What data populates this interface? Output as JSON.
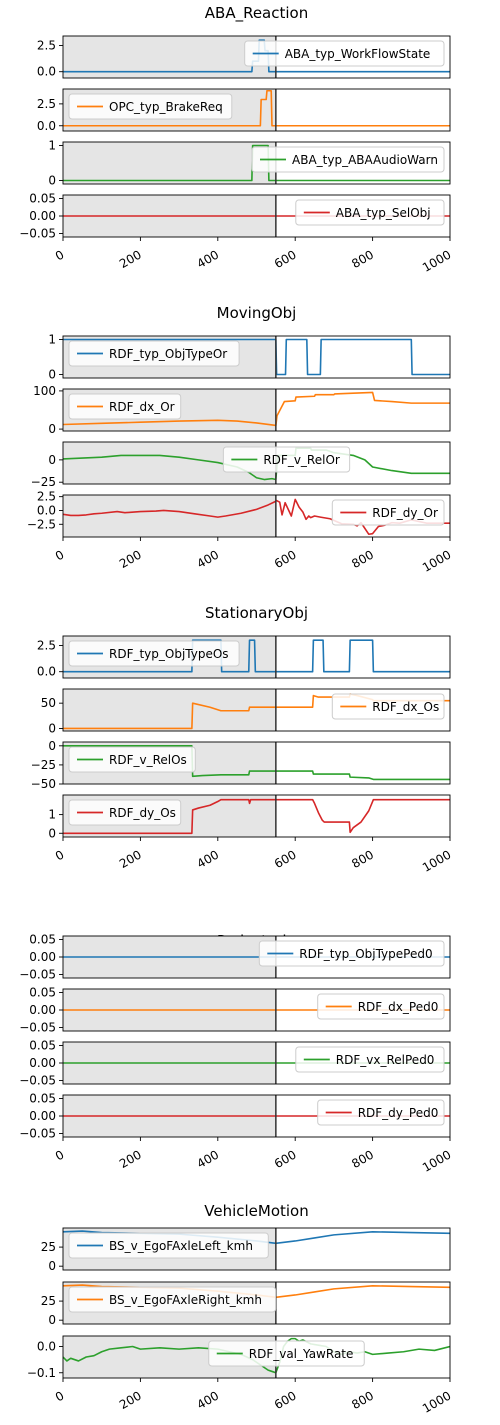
{
  "colors": {
    "c0": "#1f77b4",
    "c1": "#ff7f0e",
    "c2": "#2ca02c",
    "c3": "#d62728",
    "shade": "#e5e5e5",
    "marker": "#333333"
  },
  "chart_data": [
    {
      "type": "line",
      "title": "ABA_Reaction",
      "xlim": [
        0,
        1000
      ],
      "xticks": [
        "0",
        "200",
        "400",
        "600",
        "800",
        "1000"
      ],
      "shade_x": [
        0,
        550
      ],
      "vline_x": 550,
      "panels": [
        {
          "name": "ABA_typ_WorkFlowState",
          "color": "c0",
          "ylim": [
            -0.6,
            3.4
          ],
          "yticks": [
            0.0,
            2.5
          ],
          "yticklabels": [
            "0.0",
            "2.5"
          ],
          "legend": "right",
          "x": [
            0,
            488,
            490,
            505,
            507,
            520,
            522,
            530,
            532,
            1000
          ],
          "y": [
            0,
            0,
            1,
            1,
            3,
            3,
            2,
            2,
            0,
            0
          ]
        },
        {
          "name": "OPC_typ_BrakeReq",
          "color": "c1",
          "ylim": [
            -0.6,
            4.2
          ],
          "yticks": [
            0.0,
            2.5
          ],
          "yticklabels": [
            "0.0",
            "2.5"
          ],
          "legend": "left",
          "x": [
            0,
            510,
            512,
            525,
            527,
            538,
            540,
            1000
          ],
          "y": [
            0,
            0,
            3,
            3,
            4,
            4,
            0,
            0
          ]
        },
        {
          "name": "ABA_typ_ABAAudioWarn",
          "color": "c2",
          "ylim": [
            -0.1,
            1.1
          ],
          "yticks": [
            0,
            1
          ],
          "yticklabels": [
            "0",
            "1"
          ],
          "legend": "right",
          "x": [
            0,
            488,
            490,
            530,
            532,
            1000
          ],
          "y": [
            0,
            0,
            1,
            1,
            0,
            0
          ]
        },
        {
          "name": "ABA_typ_SelObj",
          "color": "c3",
          "ylim": [
            -0.06,
            0.06
          ],
          "yticks": [
            -0.05,
            0.0,
            0.05
          ],
          "yticklabels": [
            "−0.05",
            "0.00",
            "0.05"
          ],
          "legend": "right",
          "x": [
            0,
            1000
          ],
          "y": [
            0,
            0
          ]
        }
      ]
    },
    {
      "type": "line",
      "title": "MovingObj",
      "xlim": [
        0,
        1000
      ],
      "xticks": [
        "0",
        "200",
        "400",
        "600",
        "800",
        "1000"
      ],
      "shade_x": [
        0,
        550
      ],
      "vline_x": 550,
      "panels": [
        {
          "name": "RDF_typ_ObjTypeOr",
          "color": "c0",
          "ylim": [
            -0.1,
            1.1
          ],
          "yticks": [
            0,
            1
          ],
          "yticklabels": [
            "0",
            "1"
          ],
          "legend": "left",
          "x": [
            0,
            550,
            552,
            575,
            577,
            630,
            632,
            665,
            667,
            900,
            902,
            1000
          ],
          "y": [
            1,
            1,
            0,
            0,
            1,
            1,
            0,
            0,
            1,
            1,
            0,
            0
          ]
        },
        {
          "name": "RDF_dx_Or",
          "color": "c1",
          "ylim": [
            -5,
            105
          ],
          "yticks": [
            0,
            100
          ],
          "yticklabels": [
            "0",
            "100"
          ],
          "legend": "left",
          "x": [
            0,
            100,
            200,
            300,
            400,
            450,
            500,
            548,
            550,
            553,
            570,
            572,
            600,
            602,
            650,
            652,
            700,
            702,
            750,
            800,
            805,
            850,
            900,
            1000
          ],
          "y": [
            12,
            15,
            18,
            21,
            23,
            21,
            16,
            10,
            9,
            35,
            68,
            72,
            74,
            84,
            86,
            90,
            90,
            92,
            94,
            96,
            75,
            72,
            68,
            68
          ]
        },
        {
          "name": "RDF_v_RelOr",
          "color": "c2",
          "ylim": [
            -27,
            20
          ],
          "yticks": [
            -25,
            0
          ],
          "yticklabels": [
            "−25",
            "0"
          ],
          "legend": "center",
          "x": [
            0,
            100,
            150,
            200,
            250,
            300,
            350,
            400,
            450,
            480,
            500,
            520,
            540,
            550,
            555,
            600,
            602,
            640,
            642,
            680,
            700,
            750,
            780,
            800,
            850,
            900,
            1000
          ],
          "y": [
            1,
            3,
            5,
            5,
            5,
            3,
            0,
            -3,
            -8,
            -14,
            -20,
            -22,
            -21,
            -22,
            5,
            5,
            13,
            13,
            11,
            11,
            8,
            5,
            0,
            -8,
            -12,
            -15,
            -15
          ]
        },
        {
          "name": "RDF_dy_Or",
          "color": "c3",
          "ylim": [
            -4.8,
            2.8
          ],
          "yticks": [
            -2.5,
            0.0,
            2.5
          ],
          "yticklabels": [
            "−2.5",
            "0.0",
            "2.5"
          ],
          "legend": "right",
          "x": [
            0,
            20,
            40,
            60,
            80,
            100,
            140,
            160,
            200,
            240,
            260,
            300,
            340,
            380,
            400,
            420,
            460,
            500,
            530,
            548,
            552,
            560,
            566,
            574,
            590,
            600,
            610,
            620,
            628,
            635,
            640,
            650,
            665,
            690,
            720,
            750,
            760,
            770,
            790,
            800,
            815,
            830,
            850,
            870,
            900,
            940,
            1000
          ],
          "y": [
            -0.7,
            -0.9,
            -0.9,
            -0.8,
            -0.6,
            -0.5,
            -0.2,
            -0.4,
            -0.2,
            -0.1,
            0.0,
            -0.2,
            -0.6,
            -1.0,
            -1.2,
            -1.0,
            -0.5,
            0.2,
            1.0,
            1.6,
            1.8,
            1.5,
            -0.8,
            1.4,
            -1.0,
            2.0,
            0.6,
            -0.3,
            -1.6,
            -1.0,
            -1.3,
            -1.0,
            -1.2,
            -1.5,
            -2.4,
            -2.5,
            -2.8,
            -2.2,
            -4.3,
            -4.2,
            -2.9,
            -2.7,
            -2.2,
            -2.3,
            -1.7,
            -2.3,
            -2.3
          ]
        }
      ]
    },
    {
      "type": "line",
      "title": "StationaryObj",
      "xlim": [
        0,
        1000
      ],
      "xticks": [
        "0",
        "200",
        "400",
        "600",
        "800",
        "1000"
      ],
      "shade_x": [
        0,
        550
      ],
      "vline_x": 550,
      "panels": [
        {
          "name": "RDF_typ_ObjTypeOs",
          "color": "c0",
          "ylim": [
            -0.6,
            3.4
          ],
          "yticks": [
            0.0,
            2.5
          ],
          "yticklabels": [
            "0.0",
            "2.5"
          ],
          "legend": "left",
          "x": [
            0,
            333,
            335,
            408,
            410,
            480,
            482,
            495,
            497,
            645,
            647,
            672,
            674,
            740,
            742,
            800,
            802,
            1000
          ],
          "y": [
            0,
            0,
            3,
            3,
            0,
            0,
            3,
            3,
            0,
            0,
            3,
            3,
            0,
            0,
            3,
            3,
            0,
            0
          ]
        },
        {
          "name": "RDF_dx_Os",
          "color": "c1",
          "ylim": [
            -5,
            78
          ],
          "yticks": [
            0,
            50
          ],
          "yticklabels": [
            "0",
            "50"
          ],
          "legend": "right",
          "x": [
            0,
            333,
            335,
            380,
            408,
            410,
            480,
            482,
            495,
            497,
            645,
            647,
            660,
            700,
            740,
            742,
            760,
            800,
            802,
            1000
          ],
          "y": [
            0,
            0,
            50,
            42,
            35,
            35,
            35,
            42,
            42,
            42,
            42,
            65,
            62,
            62,
            62,
            68,
            65,
            57,
            55,
            55
          ]
        },
        {
          "name": "RDF_v_RelOs",
          "color": "c2",
          "ylim": [
            -50,
            5
          ],
          "yticks": [
            -50,
            -25,
            0
          ],
          "yticklabels": [
            "−50",
            "−25",
            "0"
          ],
          "legend": "left",
          "x": [
            0,
            333,
            335,
            360,
            408,
            410,
            480,
            482,
            495,
            497,
            645,
            647,
            740,
            742,
            790,
            802,
            1000
          ],
          "y": [
            0,
            0,
            -40,
            -39,
            -38,
            -38,
            -38,
            -33,
            -33,
            -33,
            -33,
            -37,
            -37,
            -41,
            -42,
            -44,
            -44
          ]
        },
        {
          "name": "RDF_dy_Os",
          "color": "c3",
          "ylim": [
            -0.2,
            2.05
          ],
          "yticks": [
            0,
            1
          ],
          "yticklabels": [
            "0",
            "1"
          ],
          "legend": "left",
          "x": [
            0,
            333,
            335,
            350,
            380,
            400,
            408,
            410,
            480,
            482,
            485,
            495,
            497,
            645,
            650,
            660,
            670,
            675,
            740,
            742,
            750,
            770,
            790,
            802,
            1000
          ],
          "y": [
            0,
            0,
            1.25,
            1.35,
            1.5,
            1.7,
            1.8,
            1.8,
            1.8,
            1.6,
            1.8,
            1.8,
            1.8,
            1.8,
            1.6,
            1.1,
            0.7,
            0.6,
            0.6,
            0.05,
            0.3,
            0.6,
            1.2,
            1.8,
            1.8
          ]
        }
      ]
    },
    {
      "type": "line",
      "title": "Pedestrain",
      "xlim": [
        0,
        1000
      ],
      "xticks": [
        "0",
        "200",
        "400",
        "600",
        "800",
        "1000"
      ],
      "shade_x": [
        0,
        550
      ],
      "vline_x": 550,
      "panels": [
        {
          "name": "RDF_typ_ObjTypePed0",
          "color": "c0",
          "ylim": [
            -0.06,
            0.06
          ],
          "yticks": [
            -0.05,
            0.0,
            0.05
          ],
          "yticklabels": [
            "−0.05",
            "0.00",
            "0.05"
          ],
          "legend": "right",
          "x": [
            0,
            1000
          ],
          "y": [
            0,
            0
          ]
        },
        {
          "name": "RDF_dx_Ped0",
          "color": "c1",
          "ylim": [
            -0.06,
            0.06
          ],
          "yticks": [
            -0.05,
            0.0,
            0.05
          ],
          "yticklabels": [
            "−0.05",
            "0.00",
            "0.05"
          ],
          "legend": "right",
          "x": [
            0,
            1000
          ],
          "y": [
            0,
            0
          ]
        },
        {
          "name": "RDF_vx_RelPed0",
          "color": "c2",
          "ylim": [
            -0.06,
            0.06
          ],
          "yticks": [
            -0.05,
            0.0,
            0.05
          ],
          "yticklabels": [
            "−0.05",
            "0.00",
            "0.05"
          ],
          "legend": "right",
          "x": [
            0,
            1000
          ],
          "y": [
            0,
            0
          ]
        },
        {
          "name": "RDF_dy_Ped0",
          "color": "c3",
          "ylim": [
            -0.06,
            0.06
          ],
          "yticks": [
            -0.05,
            0.0,
            0.05
          ],
          "yticklabels": [
            "−0.05",
            "0.00",
            "0.05"
          ],
          "legend": "right",
          "x": [
            0,
            1000
          ],
          "y": [
            0,
            0
          ]
        }
      ]
    },
    {
      "type": "line",
      "title": "VehicleMotion",
      "xlim": [
        0,
        1000
      ],
      "xticks": [
        "0",
        "200",
        "400",
        "600",
        "800",
        "1000"
      ],
      "shade_x": [
        0,
        550
      ],
      "vline_x": 550,
      "panels": [
        {
          "name": "BS_v_EgoFAxleLeft_kmh",
          "color": "c0",
          "ylim": [
            -5,
            50
          ],
          "yticks": [
            0,
            25
          ],
          "yticklabels": [
            "0",
            "25"
          ],
          "legend": "left",
          "x": [
            0,
            50,
            100,
            200,
            300,
            400,
            500,
            550,
            600,
            650,
            700,
            800,
            900,
            1000
          ],
          "y": [
            45,
            46,
            44,
            43,
            42,
            38,
            33,
            30,
            33,
            37,
            41,
            45,
            44,
            43
          ]
        },
        {
          "name": "BS_v_EgoFAxleRight_kmh",
          "color": "c1",
          "ylim": [
            -5,
            50
          ],
          "yticks": [
            0,
            25
          ],
          "yticklabels": [
            "0",
            "25"
          ],
          "legend": "left",
          "x": [
            0,
            50,
            100,
            200,
            300,
            400,
            500,
            550,
            600,
            650,
            700,
            800,
            900,
            1000
          ],
          "y": [
            45,
            46,
            44,
            43,
            42,
            38,
            33,
            30,
            33,
            37,
            41,
            45,
            44,
            43
          ]
        },
        {
          "name": "RDF_val_YawRate",
          "color": "c2",
          "ylim": [
            -0.12,
            0.04
          ],
          "yticks": [
            -0.1,
            0.0
          ],
          "yticklabels": [
            "−0.1",
            "0.0"
          ],
          "legend": "center",
          "x": [
            0,
            10,
            20,
            40,
            60,
            80,
            100,
            120,
            150,
            180,
            200,
            250,
            300,
            350,
            400,
            430,
            460,
            490,
            510,
            530,
            540,
            550,
            560,
            570,
            580,
            590,
            600,
            610,
            620,
            640,
            660,
            680,
            700,
            720,
            740,
            760,
            780,
            800,
            840,
            880,
            920,
            960,
            1000
          ],
          "y": [
            -0.04,
            -0.055,
            -0.045,
            -0.055,
            -0.04,
            -0.035,
            -0.02,
            -0.01,
            -0.005,
            0.0,
            -0.01,
            -0.005,
            -0.01,
            -0.005,
            -0.01,
            -0.02,
            -0.03,
            -0.05,
            -0.07,
            -0.09,
            -0.095,
            -0.1,
            -0.06,
            0.0,
            0.02,
            0.03,
            0.03,
            0.02,
            0.025,
            0.01,
            0.005,
            0.0,
            -0.02,
            -0.03,
            -0.02,
            -0.025,
            -0.02,
            -0.03,
            -0.025,
            -0.02,
            -0.01,
            -0.015,
            0.0
          ]
        }
      ]
    }
  ]
}
